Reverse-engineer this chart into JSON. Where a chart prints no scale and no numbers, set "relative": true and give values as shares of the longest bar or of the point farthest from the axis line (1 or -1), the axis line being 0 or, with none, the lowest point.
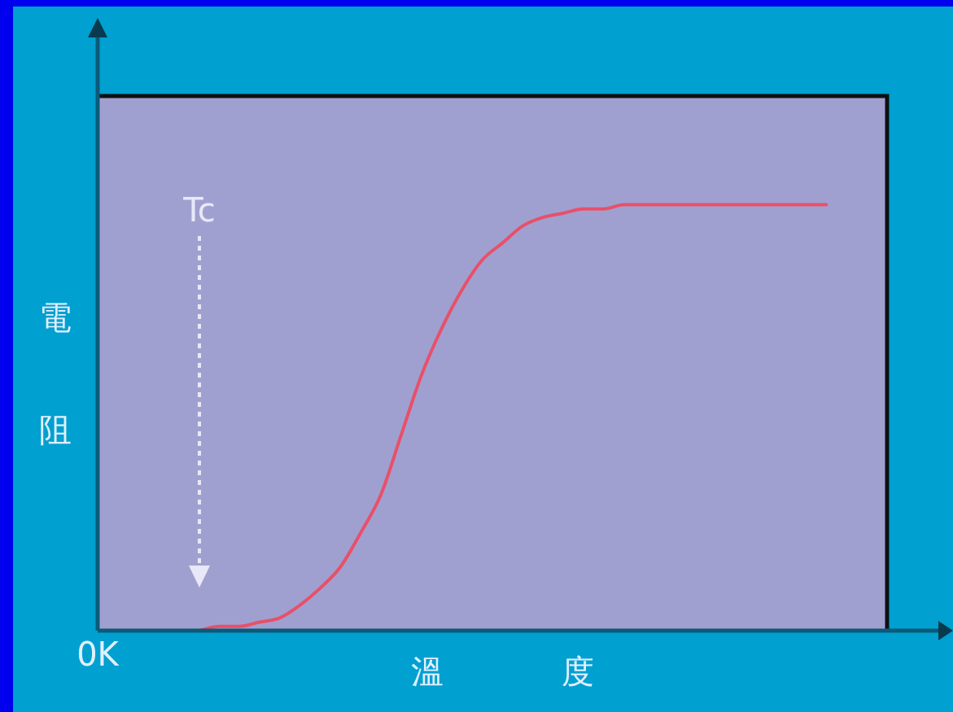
{
  "chart_data": {
    "type": "line",
    "relative": true,
    "xlabel": "溫度",
    "ylabel": "電阻",
    "categories": [
      null,
      null,
      null,
      null,
      null,
      null,
      null,
      null,
      null,
      null,
      null,
      null,
      null,
      null,
      null,
      null,
      null,
      null,
      null,
      null,
      null,
      null,
      null,
      null,
      null,
      null,
      null,
      null,
      null,
      null,
      null,
      null,
      null,
      null,
      null,
      null,
      null,
      null,
      null,
      null
    ],
    "series": [
      {
        "color": "#e8506a",
        "values": [
          null,
          null,
          null,
          null,
          null,
          0.0,
          0.01,
          0.01,
          0.02,
          0.03,
          0.06,
          0.1,
          0.15,
          0.23,
          0.32,
          0.46,
          0.6,
          0.71,
          0.8,
          0.87,
          0.91,
          0.95,
          0.97,
          0.98,
          0.99,
          0.99,
          1,
          1,
          1,
          1,
          1,
          1,
          1,
          1,
          1,
          1,
          1,
          null,
          null,
          null
        ]
      }
    ],
    "annotations": [
      "0K",
      "Tc"
    ],
    "marker": "none",
    "legend": false
  }
}
